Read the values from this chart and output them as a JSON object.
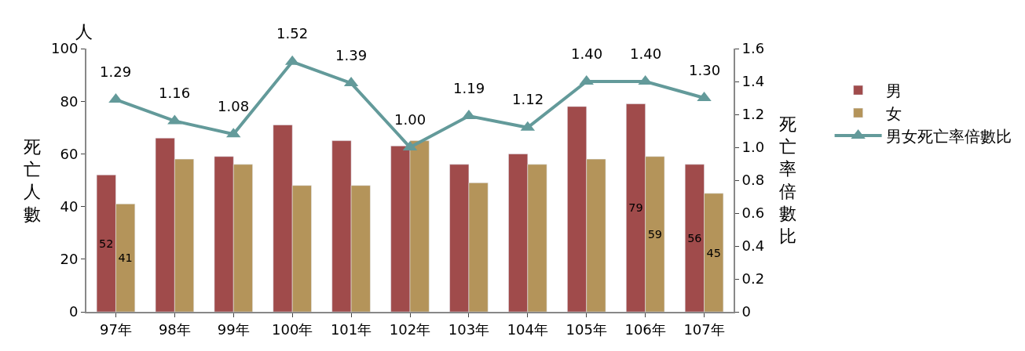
{
  "chart_data": {
    "type": "bar",
    "categories": [
      "97年",
      "98年",
      "99年",
      "100年",
      "101年",
      "102年",
      "103年",
      "104年",
      "105年",
      "106年",
      "107年"
    ],
    "ylabel": "死亡人數",
    "y2label": "死亡率倍數比",
    "annotations": [
      "人"
    ],
    "series": [
      {
        "name": "男",
        "color": "#a04b4b",
        "values": [
          52,
          66,
          59,
          71,
          65,
          63,
          56,
          60,
          78,
          79,
          56
        ],
        "value_labels": [
          "52",
          null,
          null,
          null,
          null,
          null,
          null,
          null,
          null,
          "79",
          "56"
        ]
      },
      {
        "name": "女",
        "color": "#b4945a",
        "values": [
          41,
          58,
          56,
          48,
          48,
          65,
          49,
          56,
          58,
          59,
          45
        ],
        "value_labels": [
          "41",
          null,
          null,
          null,
          null,
          null,
          null,
          null,
          null,
          "59",
          "45"
        ]
      },
      {
        "name": "男女死亡率倍數比",
        "type": "line",
        "axis": "y2",
        "color": "#639a9a",
        "marker": "triangle",
        "values": [
          1.29,
          1.16,
          1.08,
          1.52,
          1.39,
          1.0,
          1.19,
          1.12,
          1.4,
          1.4,
          1.3
        ],
        "value_labels": [
          "1.29",
          "1.16",
          "1.08",
          "1.52",
          "1.39",
          "1.00",
          "1.19",
          "1.12",
          "1.40",
          "1.40",
          "1.30"
        ]
      }
    ],
    "ylim": [
      0,
      100
    ],
    "yticks": [
      0,
      20,
      40,
      60,
      80,
      100
    ],
    "y2lim": [
      0,
      1.6
    ],
    "y2ticks": [
      {
        "value": 0,
        "label": "0"
      },
      {
        "value": 0.2,
        "label": "0.2"
      },
      {
        "value": 0.4,
        "label": "0.4"
      },
      {
        "value": 0.6,
        "label": "0.6"
      },
      {
        "value": 0.8,
        "label": "0.8"
      },
      {
        "value": 1.0,
        "label": "1.0"
      },
      {
        "value": 1.2,
        "label": "1.2"
      },
      {
        "value": 1.4,
        "label": "1.4"
      },
      {
        "value": 1.6,
        "label": "1.6"
      }
    ],
    "legend": "right"
  }
}
